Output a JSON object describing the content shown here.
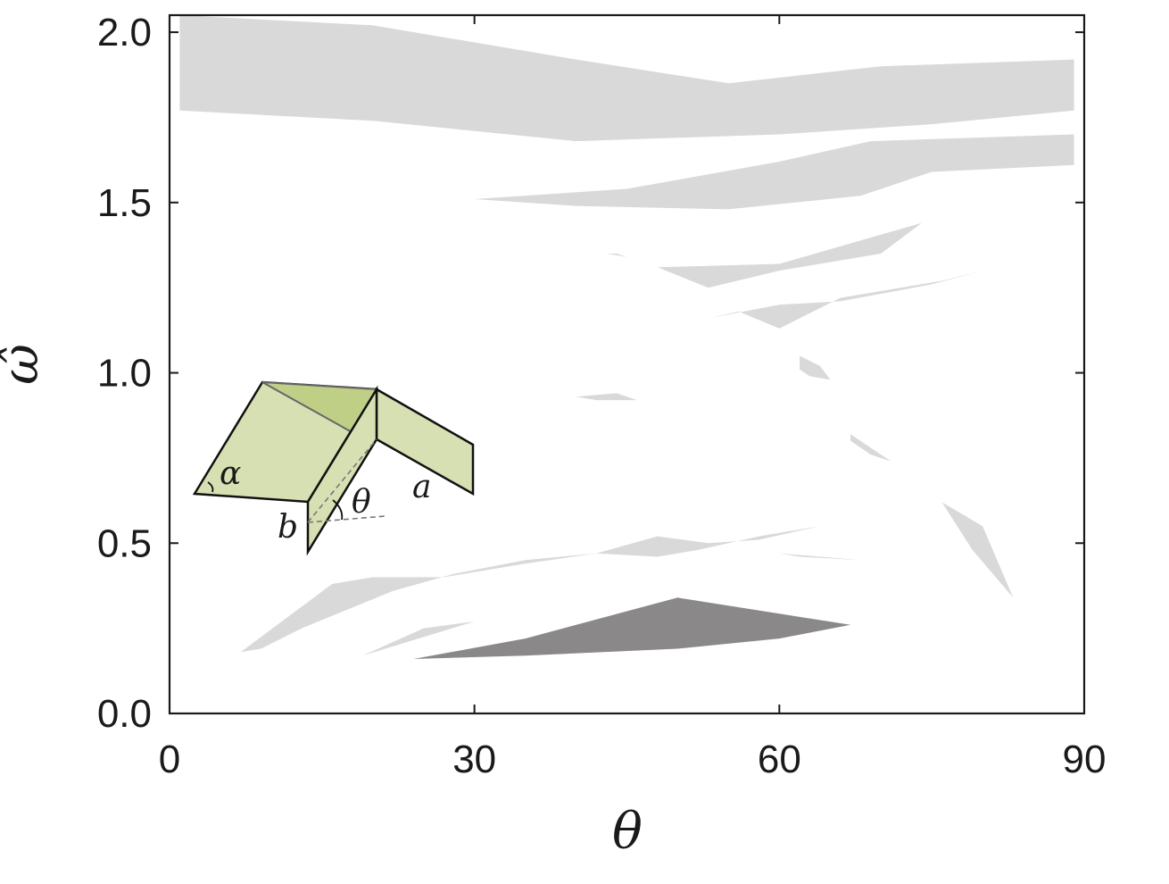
{
  "chart_data": {
    "type": "area",
    "title": "",
    "xlabel": "θ",
    "ylabel": "ω̂",
    "xlim": [
      0,
      90
    ],
    "ylim": [
      0,
      2.05
    ],
    "xticks": [
      "0",
      "30",
      "60",
      "90"
    ],
    "yticks": [
      "0.0",
      "0.5",
      "1.0",
      "1.5",
      "2.0"
    ],
    "grid": false,
    "colors": {
      "band": "#d9d9d9",
      "dark_band": "#8a8888",
      "inset_face": "#d7e0b2",
      "inset_top": "#bfcf86",
      "axis": "#1a1a1a"
    },
    "bands": [
      {
        "shade": "light",
        "points": [
          [
            1,
            2.05
          ],
          [
            20,
            2.02
          ],
          [
            40,
            1.92
          ],
          [
            55,
            1.85
          ],
          [
            70,
            1.9
          ],
          [
            89,
            1.92
          ],
          [
            89,
            1.77
          ],
          [
            75,
            1.73
          ],
          [
            60,
            1.7
          ],
          [
            40,
            1.68
          ],
          [
            20,
            1.74
          ],
          [
            1,
            1.77
          ]
        ]
      },
      {
        "shade": "light",
        "points": [
          [
            30,
            1.51
          ],
          [
            45,
            1.54
          ],
          [
            60,
            1.62
          ],
          [
            69,
            1.68
          ],
          [
            89,
            1.7
          ],
          [
            89,
            1.61
          ],
          [
            75,
            1.59
          ],
          [
            68,
            1.52
          ],
          [
            55,
            1.48
          ],
          [
            40,
            1.49
          ],
          [
            30,
            1.51
          ]
        ]
      },
      {
        "shade": "light",
        "points": [
          [
            48,
            1.31
          ],
          [
            60,
            1.32
          ],
          [
            74,
            1.44
          ],
          [
            70,
            1.35
          ],
          [
            60,
            1.3
          ],
          [
            53,
            1.25
          ],
          [
            48,
            1.31
          ]
        ]
      },
      {
        "shade": "light",
        "points": [
          [
            43,
            1.35
          ],
          [
            45,
            1.34
          ],
          [
            44,
            1.35
          ]
        ]
      },
      {
        "shade": "light",
        "points": [
          [
            53,
            1.16
          ],
          [
            60,
            1.2
          ],
          [
            66,
            1.21
          ],
          [
            75,
            1.26
          ],
          [
            80,
            1.3
          ],
          [
            76,
            1.27
          ],
          [
            66,
            1.22
          ],
          [
            60,
            1.13
          ],
          [
            56,
            1.18
          ],
          [
            53,
            1.16
          ]
        ]
      },
      {
        "shade": "light",
        "points": [
          [
            62,
            1.05
          ],
          [
            64,
            1.02
          ],
          [
            65,
            0.98
          ],
          [
            63,
            0.99
          ],
          [
            62,
            1.01
          ]
        ]
      },
      {
        "shade": "light",
        "points": [
          [
            40,
            0.93
          ],
          [
            44,
            0.94
          ],
          [
            46,
            0.92
          ],
          [
            42,
            0.92
          ]
        ]
      },
      {
        "shade": "light",
        "points": [
          [
            67,
            0.82
          ],
          [
            69,
            0.78
          ],
          [
            71,
            0.74
          ],
          [
            69,
            0.76
          ],
          [
            67,
            0.8
          ]
        ]
      },
      {
        "shade": "light",
        "points": [
          [
            76,
            0.62
          ],
          [
            80,
            0.55
          ],
          [
            83,
            0.34
          ],
          [
            79,
            0.48
          ],
          [
            76,
            0.62
          ]
        ]
      },
      {
        "shade": "light",
        "points": [
          [
            7,
            0.18
          ],
          [
            16,
            0.38
          ],
          [
            20,
            0.4
          ],
          [
            27,
            0.4
          ],
          [
            35,
            0.44
          ],
          [
            42,
            0.47
          ],
          [
            48,
            0.52
          ],
          [
            53,
            0.5
          ],
          [
            58,
            0.51
          ],
          [
            64,
            0.55
          ],
          [
            58,
            0.52
          ],
          [
            52,
            0.48
          ],
          [
            48,
            0.46
          ],
          [
            42,
            0.47
          ],
          [
            35,
            0.45
          ],
          [
            28,
            0.41
          ],
          [
            22,
            0.36
          ],
          [
            13,
            0.25
          ],
          [
            9,
            0.19
          ],
          [
            7,
            0.18
          ]
        ]
      },
      {
        "shade": "light",
        "points": [
          [
            19,
            0.17
          ],
          [
            30,
            0.27
          ],
          [
            25,
            0.25
          ],
          [
            19,
            0.17
          ]
        ]
      },
      {
        "shade": "light",
        "points": [
          [
            60,
            0.47
          ],
          [
            68,
            0.45
          ],
          [
            62,
            0.46
          ],
          [
            60,
            0.47
          ]
        ]
      },
      {
        "shade": "dark",
        "points": [
          [
            24,
            0.16
          ],
          [
            35,
            0.22
          ],
          [
            50,
            0.34
          ],
          [
            67,
            0.26
          ],
          [
            60,
            0.22
          ],
          [
            50,
            0.19
          ],
          [
            35,
            0.17
          ],
          [
            24,
            0.16
          ]
        ]
      }
    ],
    "inset": {
      "labels": {
        "alpha": "α",
        "theta": "θ",
        "a": "a",
        "b": "b"
      }
    }
  }
}
